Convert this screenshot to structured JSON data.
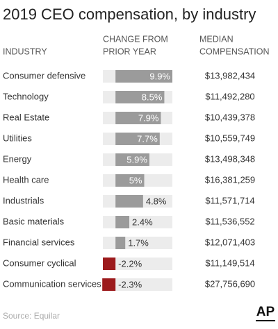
{
  "chart_data": {
    "type": "bar",
    "title": "2019 CEO compensation, by industry",
    "category_header": "INDUSTRY",
    "value_header": [
      "CHANGE FROM",
      "PRIOR YEAR"
    ],
    "compensation_header": [
      "MEDIAN",
      "COMPENSATION"
    ],
    "categories": [
      "Consumer defensive",
      "Technology",
      "Real Estate",
      "Utilities",
      "Energy",
      "Health care",
      "Industrials",
      "Basic materials",
      "Financial services",
      "Consumer cyclical",
      "Communication services"
    ],
    "values": [
      9.9,
      8.5,
      7.9,
      7.7,
      5.9,
      5,
      4.8,
      2.4,
      1.7,
      -2.2,
      -2.3
    ],
    "value_labels": [
      "9.9%",
      "8.5%",
      "7.9%",
      "7.7%",
      "5.9%",
      "5%",
      "4.8%",
      "2.4%",
      "1.7%",
      "-2.2%",
      "-2.3%"
    ],
    "compensation": [
      "$13,982,434",
      "$11,492,280",
      "$10,439,378",
      "$10,559,749",
      "$13,498,348",
      "$16,381,259",
      "$11,571,714",
      "$11,536,552",
      "$12,071,403",
      "$11,149,514",
      "$27,756,690"
    ],
    "xlim": [
      -2.2,
      9.9
    ],
    "color": "#9b9b9b",
    "negative_color": "#9c1a1c",
    "source": "Source: Equilar",
    "logo": "AP"
  }
}
